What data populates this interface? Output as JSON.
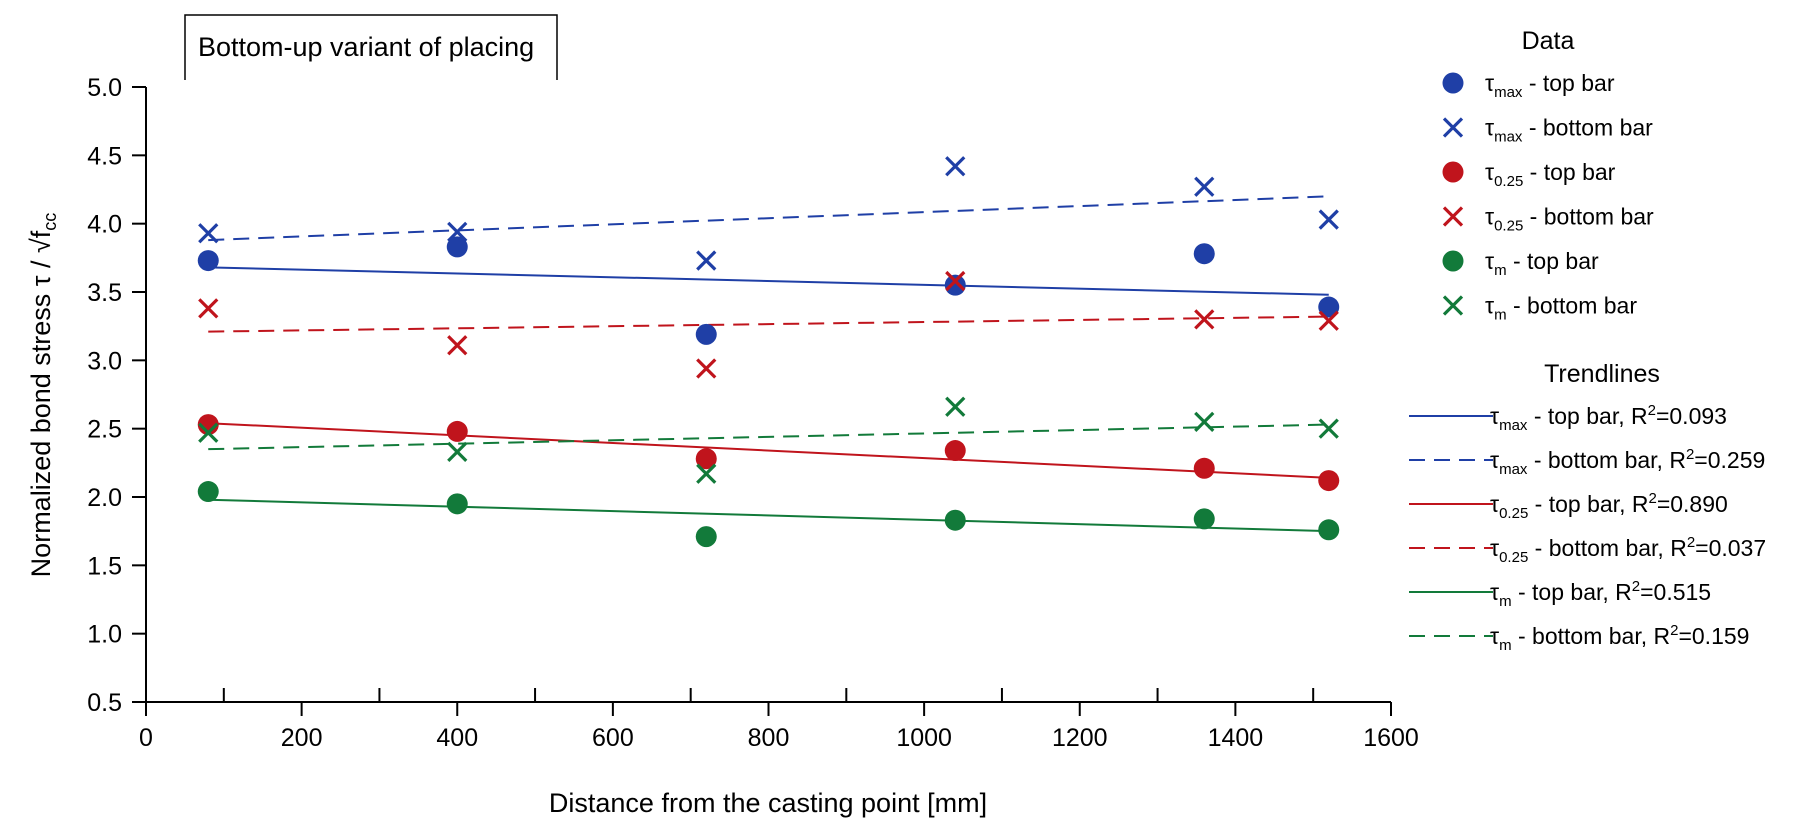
{
  "colors": {
    "blue": "#1f3fa6",
    "red": "#c0141c",
    "green": "#127a3a",
    "axis": "#000000"
  },
  "chart_data": {
    "type": "scatter",
    "title": "Bottom-up variant of placing",
    "xlabel": "Distance from the casting point [mm]",
    "ylabel": "Normalized bond stress τ / √fcc",
    "ylabel_parts": {
      "main": "Normalized bond stress τ / √f",
      "sub": "cc"
    },
    "xlim": [
      0,
      1600
    ],
    "ylim": [
      0.5,
      5.0
    ],
    "x_ticks": [
      0,
      200,
      400,
      600,
      800,
      1000,
      1200,
      1400,
      1600
    ],
    "x_tick_labels": [
      "0",
      "200",
      "400",
      "600",
      "800",
      "1000",
      "1200",
      "1400",
      "1600"
    ],
    "y_ticks": [
      0.5,
      1.0,
      1.5,
      2.0,
      2.5,
      3.0,
      3.5,
      4.0,
      4.5,
      5.0
    ],
    "y_tick_labels": [
      "0.5",
      "1.0",
      "1.5",
      "2.0",
      "2.5",
      "3.0",
      "3.5",
      "4.0",
      "4.5",
      "5.0"
    ],
    "x": [
      80,
      400,
      720,
      1040,
      1360,
      1520
    ],
    "series": [
      {
        "name": "τmax - top bar",
        "symbol": "τ",
        "sub": "max",
        "suffix": " - top bar",
        "marker": "circle",
        "color": "blue",
        "values": [
          3.73,
          3.83,
          3.19,
          3.55,
          3.78,
          3.39
        ]
      },
      {
        "name": "τmax - bottom bar",
        "symbol": "τ",
        "sub": "max",
        "suffix": " - bottom bar",
        "marker": "x",
        "color": "blue",
        "values": [
          3.93,
          3.94,
          3.73,
          4.42,
          4.27,
          4.03
        ]
      },
      {
        "name": "τ0.25 - top bar",
        "symbol": "τ",
        "sub": "0.25",
        "suffix": " - top bar",
        "marker": "circle",
        "color": "red",
        "values": [
          2.53,
          2.48,
          2.28,
          2.34,
          2.21,
          2.12
        ]
      },
      {
        "name": "τ0.25 - bottom bar",
        "symbol": "τ",
        "sub": "0.25",
        "suffix": " - bottom bar",
        "marker": "x",
        "color": "red",
        "values": [
          3.38,
          3.11,
          2.94,
          3.58,
          3.3,
          3.29
        ]
      },
      {
        "name": "τm - top bar",
        "symbol": "τ",
        "sub": "m",
        "suffix": " - top bar",
        "marker": "circle",
        "color": "green",
        "values": [
          2.04,
          1.95,
          1.71,
          1.83,
          1.84,
          1.76
        ]
      },
      {
        "name": "τm - bottom bar",
        "symbol": "τ",
        "sub": "m",
        "suffix": " - bottom bar",
        "marker": "x",
        "color": "green",
        "values": [
          2.47,
          2.33,
          2.17,
          2.66,
          2.55,
          2.5
        ]
      }
    ],
    "trendlines": [
      {
        "name": "τmax - top bar, R2=0.093",
        "symbol": "τ",
        "sub": "max",
        "text": " - top bar, R",
        "sup": "2",
        "tail": "=0.093",
        "color": "blue",
        "dash": "solid",
        "x": [
          80,
          1520
        ],
        "y": [
          3.68,
          3.48
        ]
      },
      {
        "name": "τmax - bottom bar, R2=0.259",
        "symbol": "τ",
        "sub": "max",
        "text": " - bottom bar, R",
        "sup": "2",
        "tail": "=0.259",
        "color": "blue",
        "dash": "dashed",
        "x": [
          80,
          1520
        ],
        "y": [
          3.88,
          4.2
        ]
      },
      {
        "name": "τ0.25 - top bar, R2=0.890",
        "symbol": "τ",
        "sub": "0.25",
        "text": " - top bar, R",
        "sup": "2",
        "tail": "=0.890",
        "color": "red",
        "dash": "solid",
        "x": [
          80,
          1520
        ],
        "y": [
          2.54,
          2.14
        ]
      },
      {
        "name": "τ0.25 - bottom bar, R2=0.037",
        "symbol": "τ",
        "sub": "0.25",
        "text": " - bottom bar, R",
        "sup": "2",
        "tail": "=0.037",
        "color": "red",
        "dash": "dashed",
        "x": [
          80,
          1520
        ],
        "y": [
          3.21,
          3.32
        ]
      },
      {
        "name": "τm - top bar, R2=0.515",
        "symbol": "τ",
        "sub": "m",
        "text": " - top bar, R",
        "sup": "2",
        "tail": "=0.515",
        "color": "green",
        "dash": "solid",
        "x": [
          80,
          1520
        ],
        "y": [
          1.98,
          1.75
        ]
      },
      {
        "name": "τm - bottom bar, R2=0.159",
        "symbol": "τ",
        "sub": "m",
        "text": " - bottom bar, R",
        "sup": "2",
        "tail": "=0.159",
        "color": "green",
        "dash": "dashed",
        "x": [
          80,
          1520
        ],
        "y": [
          2.35,
          2.53
        ]
      }
    ],
    "legend": {
      "data_heading": "Data",
      "trend_heading": "Trendlines",
      "placement": "right"
    }
  }
}
